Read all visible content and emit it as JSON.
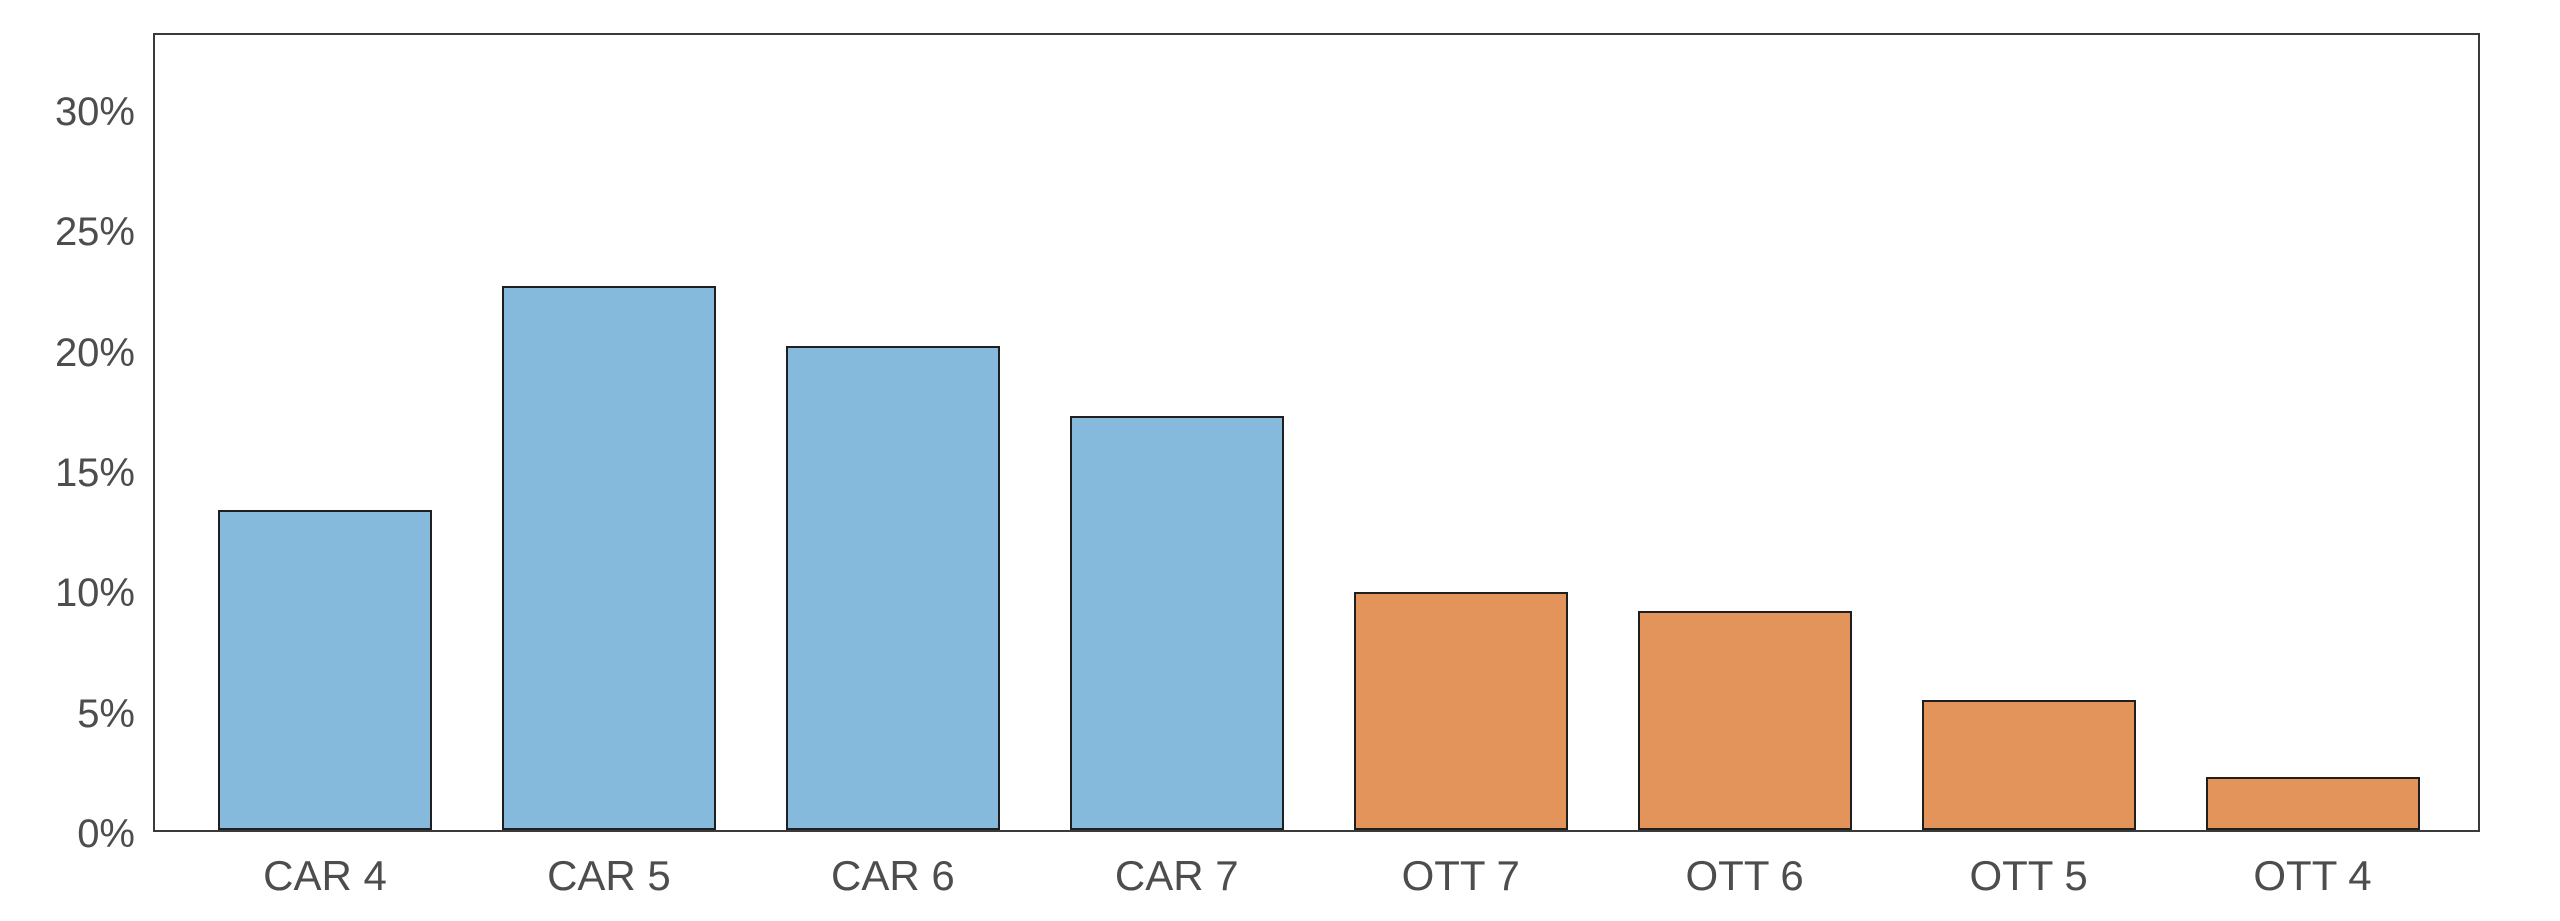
{
  "figure": {
    "background_color": "#ffffff",
    "plot_border_color": "#3a3a3a"
  },
  "chart_data": {
    "type": "bar",
    "title": "",
    "xlabel": "",
    "ylabel": "",
    "categories": [
      "CAR 4",
      "CAR 5",
      "CAR 6",
      "CAR 7",
      "OTT 7",
      "OTT 6",
      "OTT 5",
      "OTT 4"
    ],
    "values": [
      13.3,
      22.6,
      20.1,
      17.2,
      9.9,
      9.1,
      5.4,
      2.2
    ],
    "unit": "%",
    "bar_colors": [
      "#86badc",
      "#86badc",
      "#86badc",
      "#86badc",
      "#e2945a",
      "#e2945a",
      "#e2945a",
      "#e2945a"
    ],
    "groups": [
      {
        "name": "CAR",
        "color": "#86badc"
      },
      {
        "name": "OTT",
        "color": "#e2945a"
      }
    ],
    "bar_edge_color": "#1f1f1f",
    "ylim": [
      0,
      33.2
    ],
    "yticks": [
      0,
      5,
      10,
      15,
      20,
      25,
      30
    ],
    "ytick_labels": [
      "0%",
      "5%",
      "10%",
      "15%",
      "20%",
      "25%",
      "30%"
    ],
    "tick_label_color": "#4d4d4d",
    "grid": false,
    "legend": "none"
  }
}
